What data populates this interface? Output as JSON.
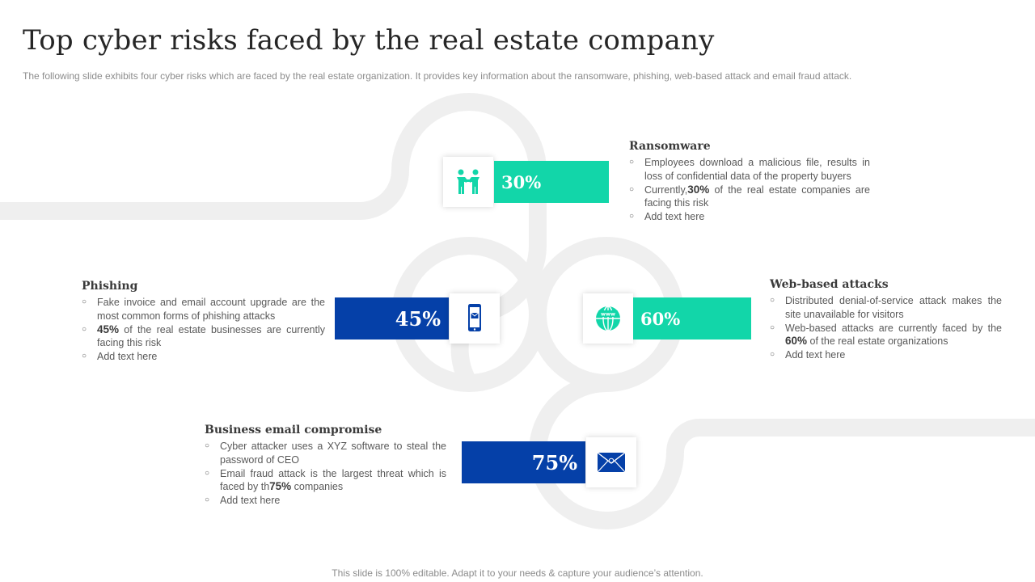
{
  "title": "Top cyber risks faced by the real estate company",
  "subtitle": "The following slide exhibits four cyber risks which are faced by the real estate organization. It provides key information about the ransomware, phishing, web-based attack and email fraud attack.",
  "footer": "This slide is 100% editable. Adapt it to your needs & capture your audience’s attention.",
  "colors": {
    "teal": "#12d6a9",
    "blue": "#0540a8",
    "road": "#efefef"
  },
  "risks": {
    "ransomware": {
      "title": "Ransomware",
      "percent": "30%",
      "icon": "handshake-people-icon",
      "point1": "Employees download  a malicious file, results in loss of confidential data of the property buyers",
      "point2_pre": "Currently,",
      "point2_bold": "30%",
      "point2_post": " of the real estate companies are facing this risk",
      "point3": "Add text here"
    },
    "phishing": {
      "title": "Phishing",
      "percent": "45%",
      "icon": "mobile-phone-email-icon",
      "point1": "Fake invoice and email account upgrade are the most common forms of phishing attacks",
      "point2_bold": "45%",
      "point2_post": " of the real estate businesses are currently facing this risk",
      "point3": "Add text here"
    },
    "web": {
      "title": "Web-based attacks",
      "percent": "60%",
      "icon": "globe-www-icon",
      "point1": "Distributed denial-of-service  attack makes the site unavailable  for visitors",
      "point2_pre": "Web-based attacks are currently faced by the ",
      "point2_bold": "60%",
      "point2_post": " of the real estate organizations",
      "point3": "Add text here"
    },
    "bec": {
      "title": "Business email compromise",
      "percent": "75%",
      "icon": "envelope-icon",
      "point1": "Cyber attacker uses a XYZ software to steal the password of CEO",
      "point2_pre": "Email fraud  attack is the largest threat which is faced by th",
      "point2_bold": "75%",
      "point2_post": " companies",
      "point3": "Add text here"
    }
  }
}
